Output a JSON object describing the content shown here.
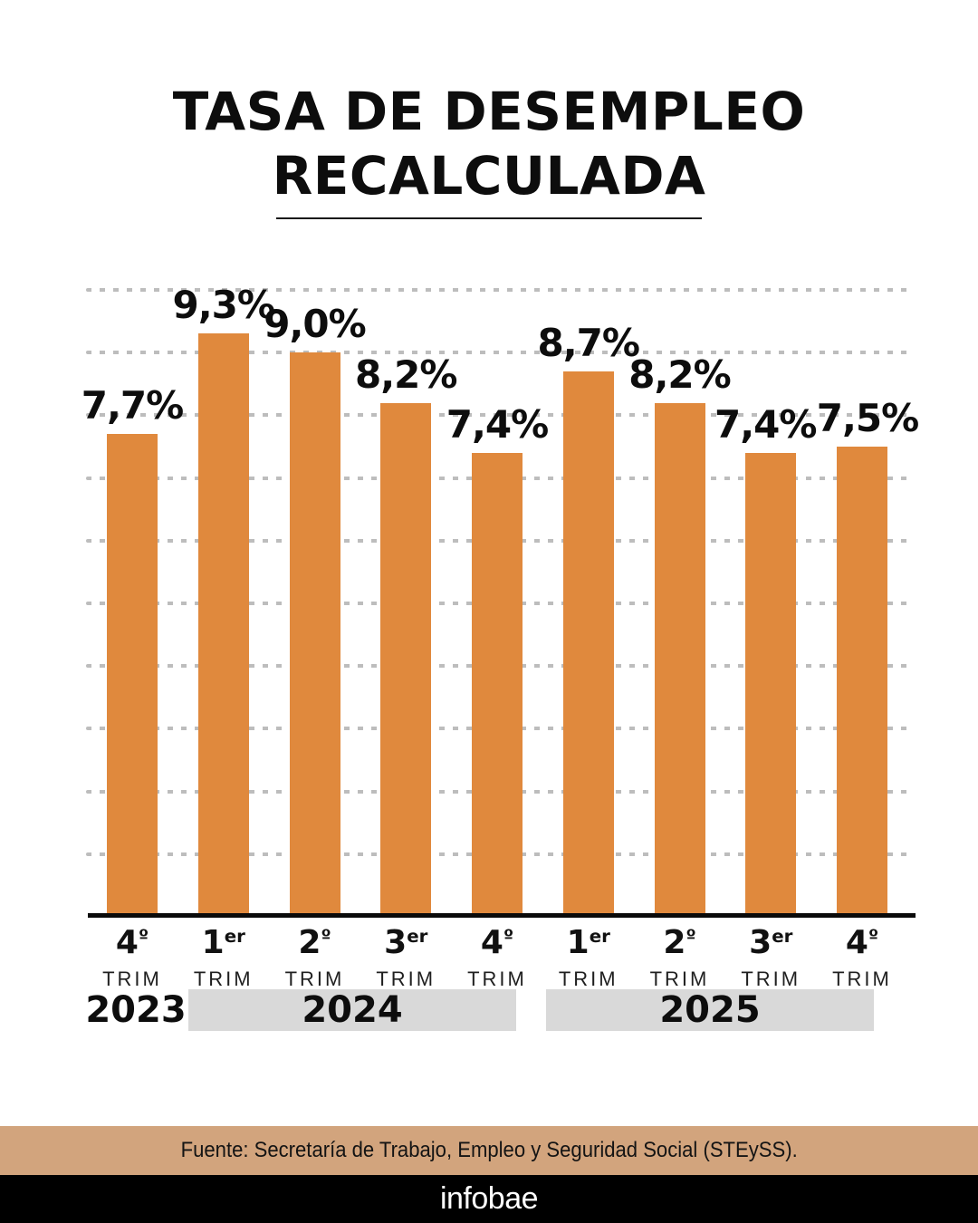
{
  "title": {
    "line1": "TASA DE DESEMPLEO",
    "line2": "RECALCULADA"
  },
  "chart_data": {
    "type": "bar",
    "title": "TASA DE DESEMPLEO RECALCULADA",
    "xlabel": "",
    "ylabel": "",
    "unit": "%",
    "ylim": [
      0,
      10.5
    ],
    "gridlines_pct": [
      1,
      2,
      3,
      4,
      5,
      6,
      7,
      8,
      9,
      10
    ],
    "grid_style": "dotted",
    "legend_position": "none",
    "categories": [
      "4º TRIM 2023",
      "1er TRIM 2024",
      "2º TRIM 2024",
      "3er TRIM 2024",
      "4º TRIM 2024",
      "1er TRIM 2025",
      "2º TRIM 2025",
      "3er TRIM 2025",
      "4º TRIM 2025"
    ],
    "values": [
      7.7,
      9.3,
      9.0,
      8.2,
      7.4,
      8.7,
      8.2,
      7.4,
      7.5
    ],
    "value_labels": [
      "7,7%",
      "9,3%",
      "9,0%",
      "8,2%",
      "7,4%",
      "8,7%",
      "8,2%",
      "7,4%",
      "7,5%"
    ],
    "quarter_labels": [
      {
        "num": "4",
        "ord": "º",
        "sub": "TRIM"
      },
      {
        "num": "1",
        "ord": "er",
        "sub": "TRIM"
      },
      {
        "num": "2",
        "ord": "º",
        "sub": "TRIM"
      },
      {
        "num": "3",
        "ord": "er",
        "sub": "TRIM"
      },
      {
        "num": "4",
        "ord": "º",
        "sub": "TRIM"
      },
      {
        "num": "1",
        "ord": "er",
        "sub": "TRIM"
      },
      {
        "num": "2",
        "ord": "º",
        "sub": "TRIM"
      },
      {
        "num": "3",
        "ord": "er",
        "sub": "TRIM"
      },
      {
        "num": "4",
        "ord": "º",
        "sub": "TRIM"
      }
    ],
    "year_groups": [
      {
        "label": "2023",
        "first_bar": 0,
        "last_bar": 0,
        "band": false
      },
      {
        "label": "2024",
        "first_bar": 1,
        "last_bar": 4,
        "band": true
      },
      {
        "label": "2025",
        "first_bar": 5,
        "last_bar": 8,
        "band": true
      }
    ],
    "bar_color": "#E0893D",
    "grid_color": "#BDBDBD",
    "year_band_color": "#D9D9D9",
    "axis_color": "#0A0A0A"
  },
  "footer": {
    "source": "Fuente: Secretaría de Trabajo, Empleo y Seguridad Social (STEySS).",
    "logo": "infobae",
    "source_band_color": "#D2A47D",
    "logo_band_color": "#000000"
  }
}
